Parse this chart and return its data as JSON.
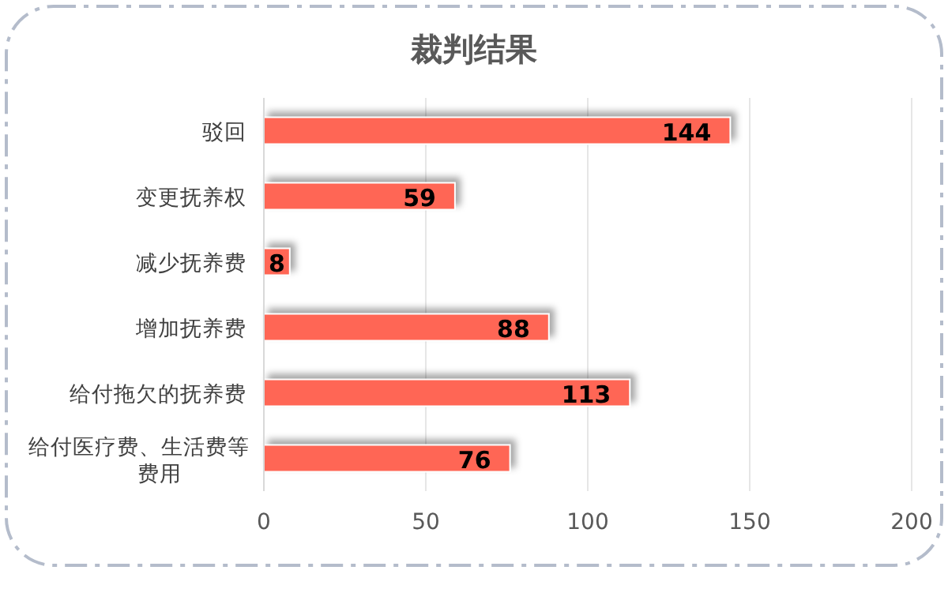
{
  "chart_data": {
    "type": "bar",
    "orientation": "horizontal",
    "title": "裁判结果",
    "categories": [
      "驳回",
      "变更抚养权",
      "减少抚养费",
      "增加抚养费",
      "给付拖欠的抚养费",
      "给付医疗费、生活费等费用"
    ],
    "values": [
      144,
      59,
      8,
      88,
      113,
      76
    ],
    "color": "#ff6655",
    "xlim": [
      0,
      200
    ],
    "xticks": [
      0,
      50,
      100,
      150,
      200
    ],
    "grid": "x",
    "data_labels": true
  }
}
